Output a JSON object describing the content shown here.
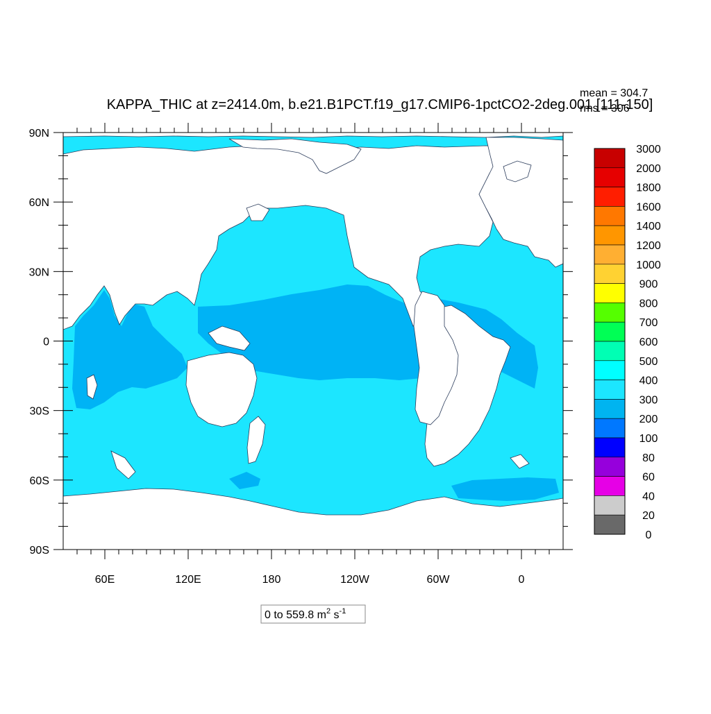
{
  "title": "KAPPA_THIC at z=2414.0m, b.e21.B1PCT.f19_g17.CMIP6-1pctCO2-2deg.001 [111-150]",
  "stats": {
    "mean": "mean = 304.7",
    "rms": "rms = 306"
  },
  "range_label": {
    "prefix": "0 to 559.8 m",
    "sup1": "2",
    "mid": " s",
    "sup2": "-1"
  },
  "map": {
    "lat_labels": [
      "90N",
      "60N",
      "30N",
      "0",
      "30S",
      "60S",
      "90S"
    ],
    "lat_values": [
      90,
      60,
      30,
      0,
      -30,
      -60,
      -90
    ],
    "lon_labels": [
      "60E",
      "120E",
      "180",
      "120W",
      "60W",
      "0"
    ],
    "lon_values": [
      60,
      120,
      180,
      240,
      300,
      360
    ],
    "lon_range": [
      30,
      390
    ],
    "lat_range": [
      -90,
      90
    ],
    "ocean_base_color": "#1ce6ff",
    "band_color": "#00b3f5",
    "land_color": "#ffffff"
  },
  "colorbar": {
    "labels": [
      "3000",
      "2000",
      "1800",
      "1600",
      "1400",
      "1200",
      "1000",
      "900",
      "800",
      "700",
      "600",
      "500",
      "400",
      "300",
      "200",
      "100",
      "80",
      "60",
      "40",
      "20",
      "0"
    ],
    "colors": [
      "#c80000",
      "#e60000",
      "#ff1e00",
      "#ff7800",
      "#ff9600",
      "#ffaf32",
      "#ffd232",
      "#ffff00",
      "#55ff00",
      "#00ff55",
      "#00ffb4",
      "#00ffff",
      "#1ce6ff",
      "#00b4f0",
      "#0078ff",
      "#0000ff",
      "#9600dc",
      "#e600e6",
      "#cccccc",
      "#696969"
    ]
  }
}
